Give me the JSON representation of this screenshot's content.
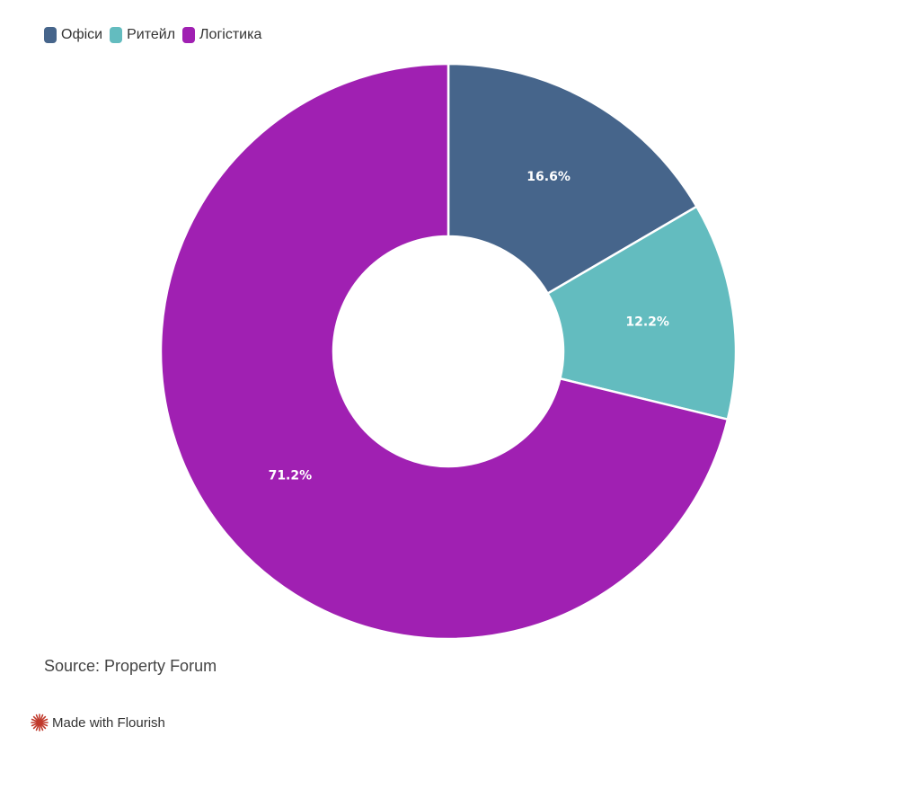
{
  "legend": {
    "items": [
      {
        "label": "Офіси",
        "color": "#46658b"
      },
      {
        "label": "Ритейл",
        "color": "#63bcbf"
      },
      {
        "label": "Логістика",
        "color": "#a020b2"
      }
    ]
  },
  "chart_data": {
    "type": "pie",
    "donut": true,
    "legend_position": "top-left",
    "slices": [
      {
        "label": "Офіси",
        "value": 16.6,
        "display": "16.6%",
        "color": "#46658b"
      },
      {
        "label": "Ритейл",
        "value": 12.2,
        "display": "12.2%",
        "color": "#63bcbf"
      },
      {
        "label": "Логістика",
        "value": 71.2,
        "display": "71.2%",
        "color": "#a020b2"
      }
    ]
  },
  "source": "Source: Property Forum",
  "footer": {
    "flourish_label": "Made with Flourish",
    "flourish_icon": "flourish-logo-icon"
  }
}
